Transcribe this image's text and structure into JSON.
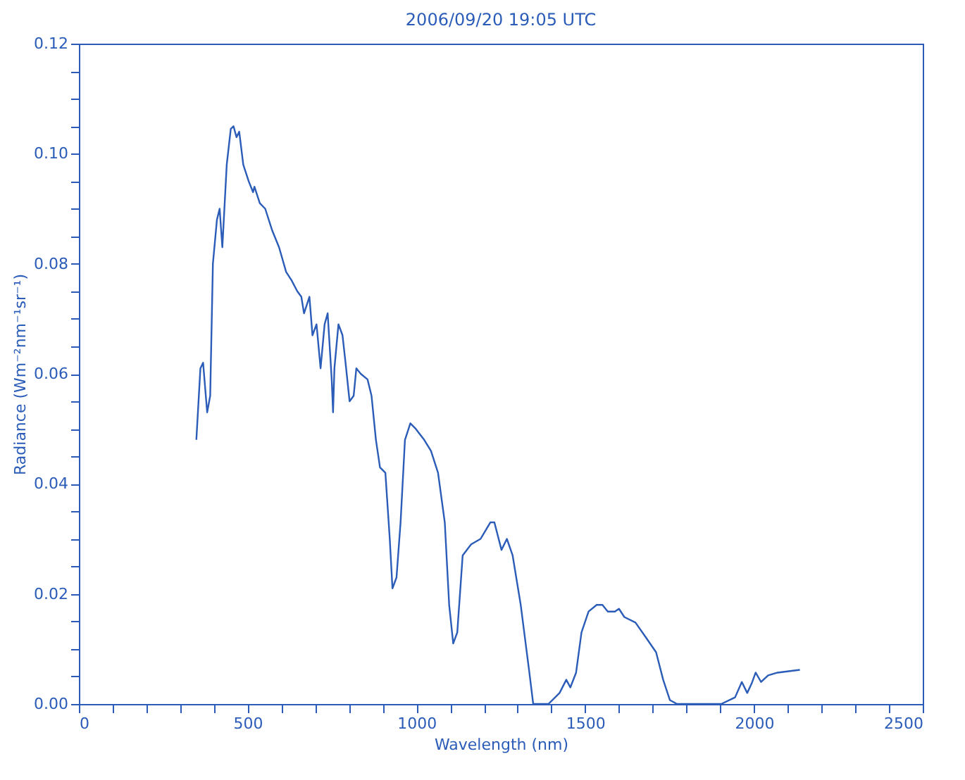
{
  "chart_data": {
    "type": "line",
    "title": "2006/09/20  19:05 UTC",
    "xlabel": "Wavelength (nm)",
    "ylabel": "Radiance (Wm⁻²nm⁻¹sr⁻¹)",
    "x": [
      348,
      360,
      368,
      380,
      389,
      397,
      409,
      417,
      425,
      438,
      450,
      458,
      467,
      475,
      487,
      503,
      516,
      520,
      536,
      552,
      573,
      593,
      614,
      630,
      647,
      659,
      667,
      683,
      692,
      704,
      716,
      728,
      737,
      749,
      753,
      757,
      769,
      781,
      790,
      802,
      814,
      822,
      835,
      855,
      867,
      880,
      892,
      908,
      921,
      929,
      941,
      953,
      966,
      982,
      998,
      1023,
      1043,
      1064,
      1084,
      1097,
      1109,
      1121,
      1137,
      1162,
      1190,
      1219,
      1231,
      1252,
      1268,
      1285,
      1309,
      1334,
      1346,
      1391,
      1424,
      1444,
      1456,
      1473,
      1489,
      1510,
      1534,
      1551,
      1567,
      1588,
      1600,
      1616,
      1649,
      1682,
      1710,
      1731,
      1751,
      1772,
      1820,
      1903,
      1944,
      1964,
      1980,
      1993,
      2005,
      2021,
      2042,
      2070,
      2136
    ],
    "series": [
      {
        "color": "#2a5cb8",
        "values": [
          0.048,
          0.061,
          0.062,
          0.053,
          0.056,
          0.08,
          0.088,
          0.09,
          0.083,
          0.098,
          0.1045,
          0.105,
          0.103,
          0.104,
          0.098,
          0.095,
          0.093,
          0.094,
          0.091,
          0.09,
          0.086,
          0.083,
          0.0785,
          0.077,
          0.075,
          0.074,
          0.071,
          0.074,
          0.067,
          0.069,
          0.061,
          0.069,
          0.071,
          0.059,
          0.053,
          0.061,
          0.069,
          0.067,
          0.062,
          0.055,
          0.056,
          0.061,
          0.06,
          0.059,
          0.056,
          0.048,
          0.043,
          0.042,
          0.03,
          0.021,
          0.023,
          0.033,
          0.048,
          0.051,
          0.05,
          0.048,
          0.046,
          0.042,
          0.033,
          0.018,
          0.011,
          0.013,
          0.027,
          0.029,
          0.03,
          0.033,
          0.033,
          0.028,
          0.03,
          0.027,
          0.018,
          0.006,
          0,
          0,
          0.002,
          0.0044,
          0.003,
          0.0057,
          0.013,
          0.0168,
          0.018,
          0.018,
          0.0168,
          0.0168,
          0.0173,
          0.0158,
          0.0148,
          0.0119,
          0.0094,
          0.0044,
          0.0007,
          0,
          0,
          0,
          0.0012,
          0.004,
          0.002,
          0.0037,
          0.0057,
          0.004,
          0.0052,
          0.0057,
          0.0062
        ]
      }
    ],
    "xlim": [
      0,
      2500
    ],
    "ylim": [
      0,
      0.12
    ],
    "xticks": [
      0,
      {
        "value": 100,
        "label": null
      },
      {
        "value": 200,
        "label": null
      },
      {
        "value": 300,
        "label": null
      },
      {
        "value": 400,
        "label": null
      },
      500,
      {
        "value": 600,
        "label": null
      },
      {
        "value": 700,
        "label": null
      },
      {
        "value": 800,
        "label": null
      },
      {
        "value": 900,
        "label": null
      },
      1000,
      {
        "value": 1100,
        "label": null
      },
      {
        "value": 1200,
        "label": null
      },
      {
        "value": 1300,
        "label": null
      },
      {
        "value": 1400,
        "label": null
      },
      1500,
      {
        "value": 1600,
        "label": null
      },
      {
        "value": 1700,
        "label": null
      },
      {
        "value": 1800,
        "label": null
      },
      {
        "value": 1900,
        "label": null
      },
      2000,
      {
        "value": 2100,
        "label": null
      },
      {
        "value": 2200,
        "label": null
      },
      {
        "value": 2300,
        "label": null
      },
      {
        "value": 2400,
        "label": null
      },
      2500
    ],
    "yticks": [
      {
        "value": 0,
        "label": "0.00"
      },
      {
        "value": 0.005,
        "label": null
      },
      0.02,
      {
        "value": 0.025,
        "label": null
      },
      0.04,
      {
        "value": 0.045,
        "label": null
      },
      0.06,
      {
        "value": 0.065,
        "label": null
      },
      0.08,
      {
        "value": 0.085,
        "label": null
      },
      {
        "value": 0.1,
        "label": "0.10"
      },
      {
        "value": 0.105,
        "label": null
      },
      0.12,
      {
        "value": 0.01,
        "label": null
      },
      {
        "value": 0.015,
        "label": null
      },
      {
        "value": 0.03,
        "label": null
      },
      {
        "value": 0.035,
        "label": null
      },
      {
        "value": 0.05,
        "label": null
      },
      {
        "value": 0.055,
        "label": null
      },
      {
        "value": 0.07,
        "label": null
      },
      {
        "value": 0.075,
        "label": null
      },
      {
        "value": 0.09,
        "label": null
      },
      {
        "value": 0.095,
        "label": null
      },
      {
        "value": 0.11,
        "label": null
      },
      {
        "value": 0.115,
        "label": null
      }
    ],
    "grid": false
  }
}
